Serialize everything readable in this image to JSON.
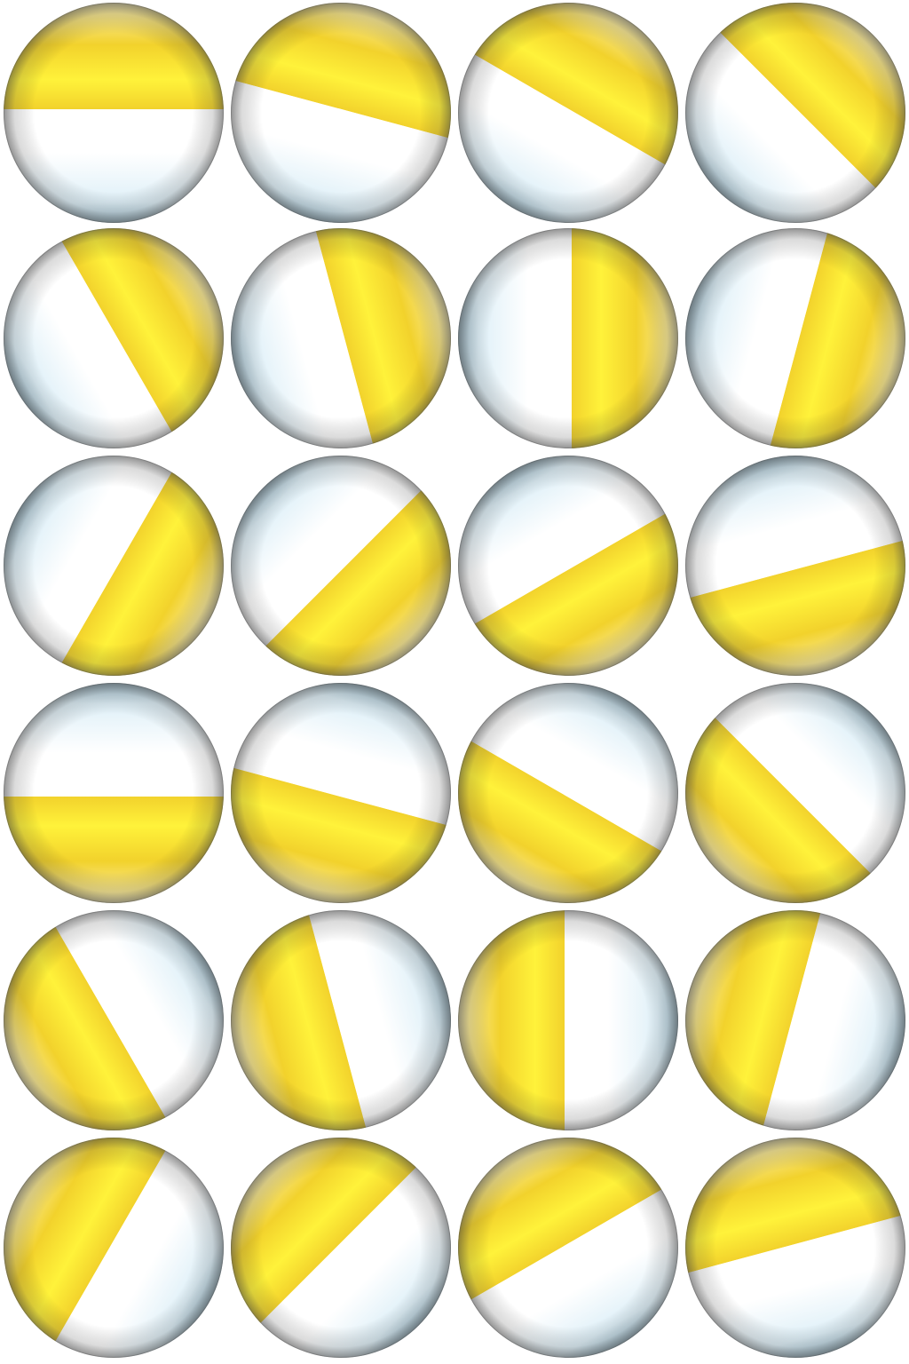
{
  "sheet": {
    "columns": 4,
    "rows": 6,
    "background": "#ffffff"
  },
  "colors": {
    "yellow_highlight": "#fff23a",
    "yellow_base": "#f2d22c",
    "yellow_shadow": "#8a6d05",
    "white_highlight": "#ffffff",
    "white_base": "#dff0f8",
    "blue_shadow": "#4e6f80",
    "edge_shadow": "#3a3a3a"
  },
  "frames": [
    {
      "frame": 1,
      "divider_angle_deg": 0,
      "yellow_side": "top"
    },
    {
      "frame": 2,
      "divider_angle_deg": 15,
      "yellow_side": "top"
    },
    {
      "frame": 3,
      "divider_angle_deg": 30,
      "yellow_side": "top"
    },
    {
      "frame": 4,
      "divider_angle_deg": 45,
      "yellow_side": "top"
    },
    {
      "frame": 5,
      "divider_angle_deg": 60,
      "yellow_side": "right"
    },
    {
      "frame": 6,
      "divider_angle_deg": 75,
      "yellow_side": "right"
    },
    {
      "frame": 7,
      "divider_angle_deg": 90,
      "yellow_side": "right"
    },
    {
      "frame": 8,
      "divider_angle_deg": 105,
      "yellow_side": "right"
    },
    {
      "frame": 9,
      "divider_angle_deg": 120,
      "yellow_side": "right"
    },
    {
      "frame": 10,
      "divider_angle_deg": 135,
      "yellow_side": "bottom"
    },
    {
      "frame": 11,
      "divider_angle_deg": 150,
      "yellow_side": "bottom"
    },
    {
      "frame": 12,
      "divider_angle_deg": 165,
      "yellow_side": "bottom"
    },
    {
      "frame": 13,
      "divider_angle_deg": 180,
      "yellow_side": "bottom"
    },
    {
      "frame": 14,
      "divider_angle_deg": 195,
      "yellow_side": "bottom"
    },
    {
      "frame": 15,
      "divider_angle_deg": 210,
      "yellow_side": "bottom"
    },
    {
      "frame": 16,
      "divider_angle_deg": 225,
      "yellow_side": "bottom"
    },
    {
      "frame": 17,
      "divider_angle_deg": 240,
      "yellow_side": "left"
    },
    {
      "frame": 18,
      "divider_angle_deg": 255,
      "yellow_side": "left"
    },
    {
      "frame": 19,
      "divider_angle_deg": 270,
      "yellow_side": "left"
    },
    {
      "frame": 20,
      "divider_angle_deg": 285,
      "yellow_side": "left"
    },
    {
      "frame": 21,
      "divider_angle_deg": 300,
      "yellow_side": "left"
    },
    {
      "frame": 22,
      "divider_angle_deg": 315,
      "yellow_side": "top"
    },
    {
      "frame": 23,
      "divider_angle_deg": 330,
      "yellow_side": "top"
    },
    {
      "frame": 24,
      "divider_angle_deg": 345,
      "yellow_side": "top"
    }
  ]
}
